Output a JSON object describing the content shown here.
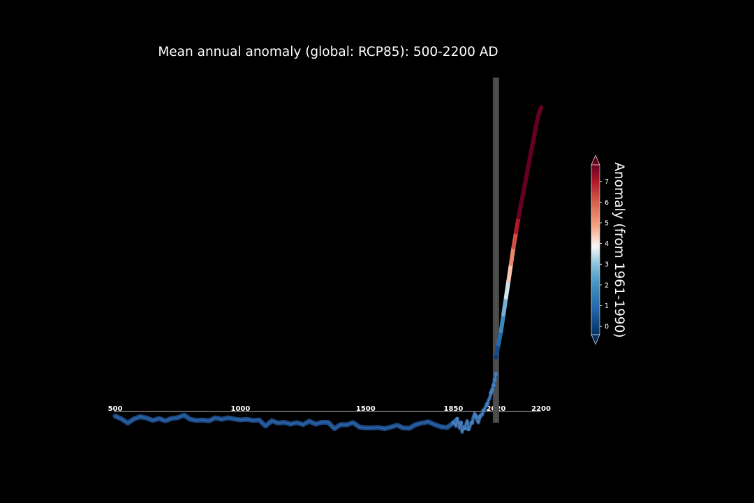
{
  "chart_data": {
    "type": "line",
    "title": "Mean annual anomaly (global: RCP85): 500-2200 AD",
    "x_ticks": [
      500,
      1000,
      1500,
      1850,
      2020,
      2200
    ],
    "xlim": [
      500,
      2200
    ],
    "ylim": [
      -3.6,
      14.1
    ],
    "axis_line_y": -3.0,
    "marker_year": 2020,
    "colorbar": {
      "label": "Anomaly (from 1961-1990)",
      "ticks": [
        0,
        1,
        2,
        3,
        4,
        5,
        6,
        7
      ],
      "range": [
        -0.4,
        7.8
      ],
      "colormap": "RdBu_r",
      "extend": "both"
    },
    "series": [
      {
        "x": [
          500,
          525,
          550,
          575,
          600,
          625,
          650,
          675,
          700,
          725,
          750,
          775,
          800,
          825,
          850,
          875,
          900,
          925,
          950,
          975,
          1000,
          1025,
          1050,
          1075,
          1100,
          1125,
          1150,
          1175,
          1200,
          1225,
          1250,
          1275,
          1300,
          1325,
          1350,
          1375,
          1400,
          1425,
          1450,
          1475,
          1500,
          1525,
          1550,
          1575,
          1600,
          1625,
          1650,
          1675,
          1700,
          1725,
          1750,
          1775,
          1800,
          1825,
          1850
        ],
        "y": [
          -3.25,
          -3.4,
          -3.62,
          -3.4,
          -3.28,
          -3.35,
          -3.48,
          -3.38,
          -3.5,
          -3.38,
          -3.33,
          -3.2,
          -3.42,
          -3.48,
          -3.46,
          -3.5,
          -3.34,
          -3.42,
          -3.34,
          -3.4,
          -3.45,
          -3.42,
          -3.48,
          -3.46,
          -3.78,
          -3.5,
          -3.62,
          -3.58,
          -3.68,
          -3.6,
          -3.7,
          -3.52,
          -3.68,
          -3.58,
          -3.58,
          -3.92,
          -3.7,
          -3.71,
          -3.6,
          -3.84,
          -3.88,
          -3.88,
          -3.86,
          -3.92,
          -3.84,
          -3.74,
          -3.88,
          -3.9,
          -3.7,
          -3.62,
          -3.55,
          -3.7,
          -3.82,
          -3.86,
          -3.62
        ]
      },
      {
        "x": [
          1850,
          1855,
          1860,
          1865,
          1870,
          1875,
          1880,
          1885,
          1890,
          1895,
          1900,
          1905,
          1910,
          1915,
          1920,
          1925,
          1930,
          1935,
          1940,
          1945,
          1950,
          1955,
          1960,
          1965,
          1970,
          1975,
          1980,
          1985,
          1990,
          1995,
          2000,
          2005,
          2010,
          2015,
          2020
        ],
        "y": [
          -3.6,
          -3.5,
          -3.8,
          -3.4,
          -3.7,
          -3.9,
          -3.6,
          -4.1,
          -3.8,
          -3.9,
          -3.7,
          -3.5,
          -3.95,
          -3.85,
          -3.6,
          -3.6,
          -3.3,
          -3.1,
          -3.25,
          -3.5,
          -3.6,
          -3.3,
          -3.15,
          -3.2,
          -2.95,
          -2.85,
          -2.7,
          -2.6,
          -2.4,
          -2.3,
          -2.0,
          -1.85,
          -1.6,
          -1.3,
          -1.0
        ]
      },
      {
        "x": [
          2020,
          2030,
          2040,
          2050,
          2060,
          2070,
          2080,
          2090,
          2100,
          2110,
          2120,
          2130,
          2140,
          2150,
          2160,
          2170,
          2180,
          2190,
          2200
        ],
        "y": [
          -0.1,
          0.6,
          1.3,
          2.2,
          3.1,
          4.0,
          4.9,
          5.8,
          6.6,
          7.4,
          8.1,
          8.8,
          9.5,
          10.2,
          10.9,
          11.6,
          12.3,
          12.9,
          13.3
        ]
      }
    ]
  }
}
